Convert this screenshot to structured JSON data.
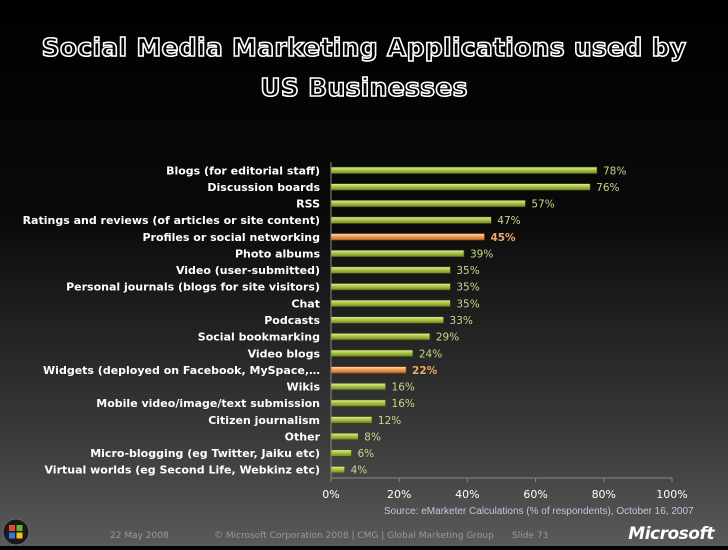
{
  "slide": {
    "title_line1": "Social Media Marketing Applications used by",
    "title_line2": "US Businesses",
    "source": "Source: eMarketer Calculations (% of respondents), October 16, 2007",
    "footer_date": "22 May 2008",
    "footer_copyright": "© Microsoft Corporation 2008 | CMG | Global Marketing Group",
    "footer_slide": "Slide 73",
    "brand": "Microsoft"
  },
  "colors": {
    "bar_green": "#a9c24a",
    "bar_orange": "#f0a060",
    "label_green": "#c8d88a",
    "label_orange": "#f0a868"
  },
  "chart_data": {
    "type": "bar",
    "orientation": "horizontal",
    "categories": [
      "Blogs (for editorial staff)",
      "Discussion boards",
      "RSS",
      "Ratings and reviews (of articles or site content)",
      "Profiles or social networking",
      "Photo albums",
      "Video (user-submitted)",
      "Personal journals (blogs for site visitors)",
      "Chat",
      "Podcasts",
      "Social bookmarking",
      "Video blogs",
      "Widgets (deployed on Facebook, MySpace,…",
      "Wikis",
      "Mobile video/image/text submission",
      "Citizen journalism",
      "Other",
      "Micro-blogging (eg Twitter, Jaiku etc)",
      "Virtual worlds (eg Second Life, Webkinz etc)"
    ],
    "values": [
      78,
      76,
      57,
      47,
      45,
      39,
      35,
      35,
      35,
      33,
      29,
      24,
      22,
      16,
      16,
      12,
      8,
      6,
      4
    ],
    "value_labels": [
      "78%",
      "76%",
      "57%",
      "47%",
      "45%",
      "39%",
      "35%",
      "35%",
      "35%",
      "33%",
      "29%",
      "24%",
      "22%",
      "16%",
      "16%",
      "12%",
      "8%",
      "6%",
      "4%"
    ],
    "highlighted": [
      4,
      12
    ],
    "xlim": [
      0,
      100
    ],
    "xticks": [
      0,
      20,
      40,
      60,
      80,
      100
    ],
    "xtick_labels": [
      "0%",
      "20%",
      "40%",
      "60%",
      "80%",
      "100%"
    ],
    "grid": false,
    "legend": "none"
  }
}
